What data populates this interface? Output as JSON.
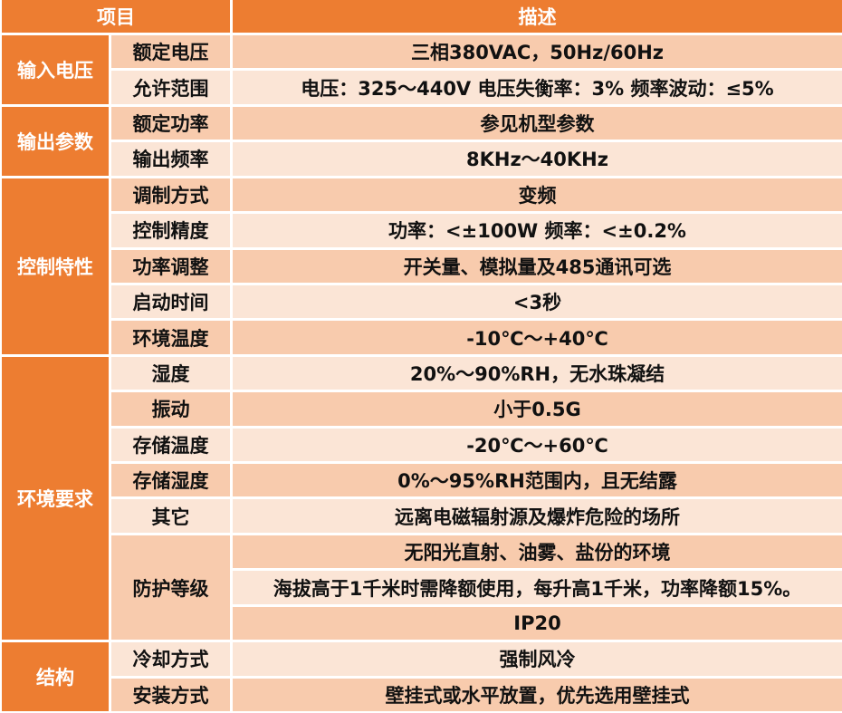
{
  "colors": {
    "header": "#ed7d31",
    "group": "#ed7d31",
    "row_dark": "#f8cbad",
    "row_light": "#fbe5d6"
  },
  "header": {
    "item": "项目",
    "desc": "描述"
  },
  "groups": [
    {
      "name": "输入电压",
      "rows": [
        {
          "label": "额定电压",
          "values": [
            "三相380VAC，50Hz/60Hz"
          ]
        },
        {
          "label": "允许范围",
          "values": [
            "电压：325～440V 电压失衡率：3% 频率波动：≤5%"
          ]
        }
      ]
    },
    {
      "name": "输出参数",
      "rows": [
        {
          "label": "额定功率",
          "values": [
            "参见机型参数"
          ]
        },
        {
          "label": "输出频率",
          "values": [
            "8KHz～40KHz"
          ]
        }
      ]
    },
    {
      "name": "控制特性",
      "rows": [
        {
          "label": "调制方式",
          "values": [
            "变频"
          ]
        },
        {
          "label": "控制精度",
          "values": [
            "功率：<±100W   频率：<±0.2%"
          ]
        },
        {
          "label": "功率调整",
          "values": [
            "开关量、模拟量及485通讯可选"
          ]
        },
        {
          "label": "启动时间",
          "values": [
            "<3秒"
          ]
        },
        {
          "label": "环境温度",
          "values": [
            "-10℃～+40℃"
          ]
        }
      ]
    },
    {
      "name": "环境要求",
      "rows": [
        {
          "label": "湿度",
          "values": [
            "20%～90%RH，无水珠凝结"
          ]
        },
        {
          "label": "振动",
          "values": [
            "小于0.5G"
          ]
        },
        {
          "label": "存储温度",
          "values": [
            "-20℃～+60℃"
          ]
        },
        {
          "label": "存储湿度",
          "values": [
            "0%～95%RH范围内，且无结露"
          ]
        },
        {
          "label": "其它",
          "values": [
            "远离电磁辐射源及爆炸危险的场所"
          ]
        },
        {
          "label": "防护等级",
          "values": [
            "无阳光直射、油雾、盐份的环境",
            "海拔高于1千米时需降额使用，每升高1千米，功率降额15%。",
            "IP20"
          ]
        }
      ]
    },
    {
      "name": "结构",
      "rows": [
        {
          "label": "冷却方式",
          "values": [
            "强制风冷"
          ]
        },
        {
          "label": "安装方式",
          "values": [
            "壁挂式或水平放置，优先选用壁挂式"
          ]
        }
      ]
    }
  ]
}
